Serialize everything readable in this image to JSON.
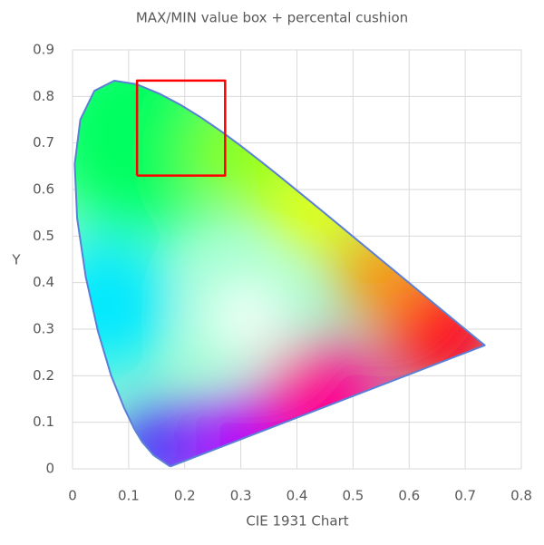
{
  "chart_data": {
    "type": "line",
    "title": "MAX/MIN value box + percental cushion",
    "x_label": "CIE 1931 Chart",
    "y_label": "Y",
    "xlim": [
      0,
      0.8
    ],
    "ylim": [
      0,
      0.9
    ],
    "xticks": [
      0,
      0.1,
      0.2,
      0.3,
      0.4,
      0.5,
      0.6,
      0.7,
      0.8
    ],
    "yticks": [
      0,
      0.1,
      0.2,
      0.3,
      0.4,
      0.5,
      0.6,
      0.7,
      0.8,
      0.9
    ],
    "grid": true,
    "series": [
      {
        "color": "#5b7fd6",
        "x": [
          0.1741,
          0.144,
          0.1241,
          0.1096,
          0.0913,
          0.0687,
          0.0454,
          0.0235,
          0.0082,
          0.0039,
          0.0139,
          0.0389,
          0.0743,
          0.1142,
          0.1547,
          0.1929,
          0.2296,
          0.2658,
          0.3016,
          0.3373,
          0.3731,
          0.4441,
          0.5125,
          0.5752,
          0.627,
          0.6915,
          0.719,
          0.7347,
          0.1741
        ],
        "values": [
          0.005,
          0.0297,
          0.0578,
          0.0868,
          0.1327,
          0.2007,
          0.295,
          0.4127,
          0.5384,
          0.6548,
          0.7502,
          0.812,
          0.8338,
          0.8262,
          0.8059,
          0.7816,
          0.7543,
          0.7243,
          0.6923,
          0.6589,
          0.6245,
          0.5547,
          0.4866,
          0.4242,
          0.3725,
          0.3083,
          0.2809,
          0.2653,
          0.005
        ]
      },
      {
        "color": "#ff0000",
        "x": [
          0.115,
          0.272,
          0.272,
          0.115,
          0.115
        ],
        "values": [
          0.63,
          0.63,
          0.834,
          0.834,
          0.63
        ]
      }
    ]
  }
}
